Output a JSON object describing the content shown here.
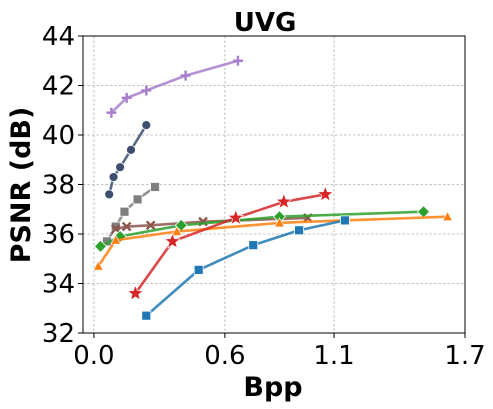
{
  "chart_data": {
    "type": "line",
    "title": "UVG",
    "xlabel": "Bpp",
    "ylabel": "PSNR (dB)",
    "xlim": [
      -0.05,
      1.7
    ],
    "ylim": [
      32,
      44
    ],
    "xticks": [
      0.0,
      0.6,
      1.1,
      1.7
    ],
    "xtick_labels": [
      "0.0",
      "0.6",
      "1.1",
      "1.7"
    ],
    "yticks": [
      32,
      34,
      36,
      38,
      40,
      42,
      44
    ],
    "ytick_labels": [
      "32",
      "34",
      "36",
      "38",
      "40",
      "42",
      "44"
    ],
    "grid": true,
    "legend": null,
    "series": [
      {
        "color": "#a67ecb",
        "marker": "plus",
        "x": [
          0.08,
          0.15,
          0.24,
          0.42,
          0.66
        ],
        "y": [
          40.9,
          41.5,
          41.8,
          42.4,
          43.0
        ]
      },
      {
        "color": "#3d4e6e",
        "marker": "circle",
        "x": [
          0.07,
          0.09,
          0.12,
          0.17,
          0.24
        ],
        "y": [
          37.6,
          38.3,
          38.7,
          39.4,
          40.4
        ]
      },
      {
        "color": "#7f7f7f",
        "marker": "square",
        "x": [
          0.06,
          0.1,
          0.14,
          0.2,
          0.28
        ],
        "y": [
          35.7,
          36.3,
          36.9,
          37.4,
          37.9
        ]
      },
      {
        "color": "#8c564b",
        "marker": "x",
        "x": [
          0.1,
          0.15,
          0.26,
          0.5,
          0.98
        ],
        "y": [
          36.2,
          36.3,
          36.35,
          36.5,
          36.65
        ]
      },
      {
        "color": "#2ca02c",
        "marker": "diamond",
        "x": [
          0.03,
          0.12,
          0.4,
          0.85,
          1.51
        ],
        "y": [
          35.5,
          35.9,
          36.35,
          36.7,
          36.9
        ]
      },
      {
        "color": "#ff7f0e",
        "marker": "triangle",
        "x": [
          0.02,
          0.1,
          0.38,
          0.85,
          1.62
        ],
        "y": [
          34.7,
          35.75,
          36.1,
          36.45,
          36.7
        ]
      },
      {
        "color": "#d62728",
        "marker": "star",
        "x": [
          0.19,
          0.36,
          0.65,
          0.87,
          1.06
        ],
        "y": [
          33.6,
          35.7,
          36.65,
          37.3,
          37.6
        ]
      },
      {
        "color": "#1f77b4",
        "marker": "square",
        "x": [
          0.24,
          0.48,
          0.73,
          0.94,
          1.15
        ],
        "y": [
          32.7,
          34.55,
          35.55,
          36.15,
          36.55
        ]
      }
    ]
  }
}
